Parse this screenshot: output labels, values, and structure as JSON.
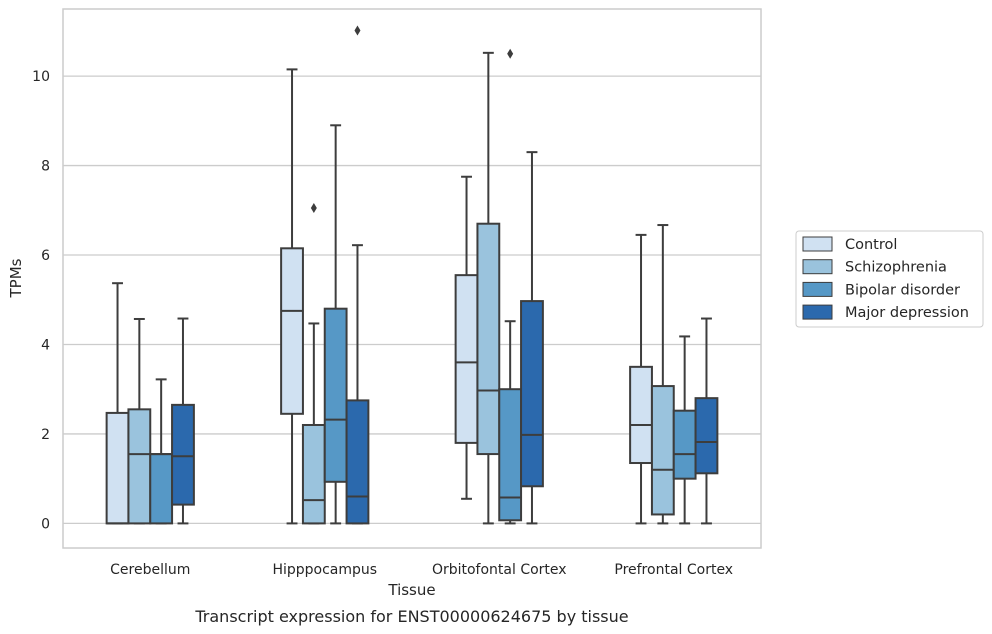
{
  "chart_data": {
    "type": "box",
    "title": "",
    "xlabel": "Tissue",
    "ylabel": "TPMs",
    "caption": "Transcript expression for ENST00000624675 by tissue",
    "ylim": [
      -0.55,
      11.5
    ],
    "yticks": [
      0,
      2,
      4,
      6,
      8,
      10
    ],
    "grid": "horizontal",
    "legend_position": "right",
    "categories": [
      "Cerebellum",
      "Hipppocampus",
      "Orbitofontal Cortex",
      "Prefrontal Cortex"
    ],
    "series": [
      {
        "name": "Control",
        "color": "#d0e1f2",
        "boxes": [
          {
            "whislo": 0,
            "q1": 0,
            "med": 0,
            "q3": 2.47,
            "whishi": 5.37,
            "fliers": []
          },
          {
            "whislo": 0,
            "q1": 2.45,
            "med": 4.75,
            "q3": 6.15,
            "whishi": 10.15,
            "fliers": []
          },
          {
            "whislo": 0.55,
            "q1": 1.8,
            "med": 3.6,
            "q3": 5.55,
            "whishi": 7.75,
            "fliers": []
          },
          {
            "whislo": 0,
            "q1": 1.35,
            "med": 2.2,
            "q3": 3.5,
            "whishi": 6.45,
            "fliers": []
          }
        ]
      },
      {
        "name": "Schizophrenia",
        "color": "#9ac3dd",
        "boxes": [
          {
            "whislo": 0,
            "q1": 0,
            "med": 1.55,
            "q3": 2.55,
            "whishi": 4.57,
            "fliers": []
          },
          {
            "whislo": 0,
            "q1": 0,
            "med": 0.52,
            "q3": 2.2,
            "whishi": 4.47,
            "fliers": [
              7.05
            ]
          },
          {
            "whislo": 0,
            "q1": 1.55,
            "med": 2.97,
            "q3": 6.7,
            "whishi": 10.52,
            "fliers": []
          },
          {
            "whislo": 0,
            "q1": 0.2,
            "med": 1.2,
            "q3": 3.07,
            "whishi": 6.67,
            "fliers": []
          }
        ]
      },
      {
        "name": "Bipolar disorder",
        "color": "#5698c6",
        "boxes": [
          {
            "whislo": 0,
            "q1": 0,
            "med": 1.55,
            "q3": 1.55,
            "whishi": 3.22,
            "fliers": []
          },
          {
            "whislo": 0,
            "q1": 0.93,
            "med": 2.32,
            "q3": 4.8,
            "whishi": 8.9,
            "fliers": []
          },
          {
            "whislo": 0,
            "q1": 0.07,
            "med": 0.58,
            "q3": 3.0,
            "whishi": 4.52,
            "fliers": [
              10.5
            ]
          },
          {
            "whislo": 0,
            "q1": 1.0,
            "med": 1.55,
            "q3": 2.52,
            "whishi": 4.18,
            "fliers": []
          }
        ]
      },
      {
        "name": "Major depression",
        "color": "#2b69ad",
        "boxes": [
          {
            "whislo": 0,
            "q1": 0.42,
            "med": 1.5,
            "q3": 2.65,
            "whishi": 4.58,
            "fliers": []
          },
          {
            "whislo": 0,
            "q1": 0,
            "med": 0.6,
            "q3": 2.75,
            "whishi": 6.22,
            "fliers": [
              11.02
            ]
          },
          {
            "whislo": 0,
            "q1": 0.83,
            "med": 1.98,
            "q3": 4.97,
            "whishi": 8.3,
            "fliers": []
          },
          {
            "whislo": 0,
            "q1": 1.12,
            "med": 1.82,
            "q3": 2.8,
            "whishi": 4.58,
            "fliers": []
          }
        ]
      }
    ]
  }
}
